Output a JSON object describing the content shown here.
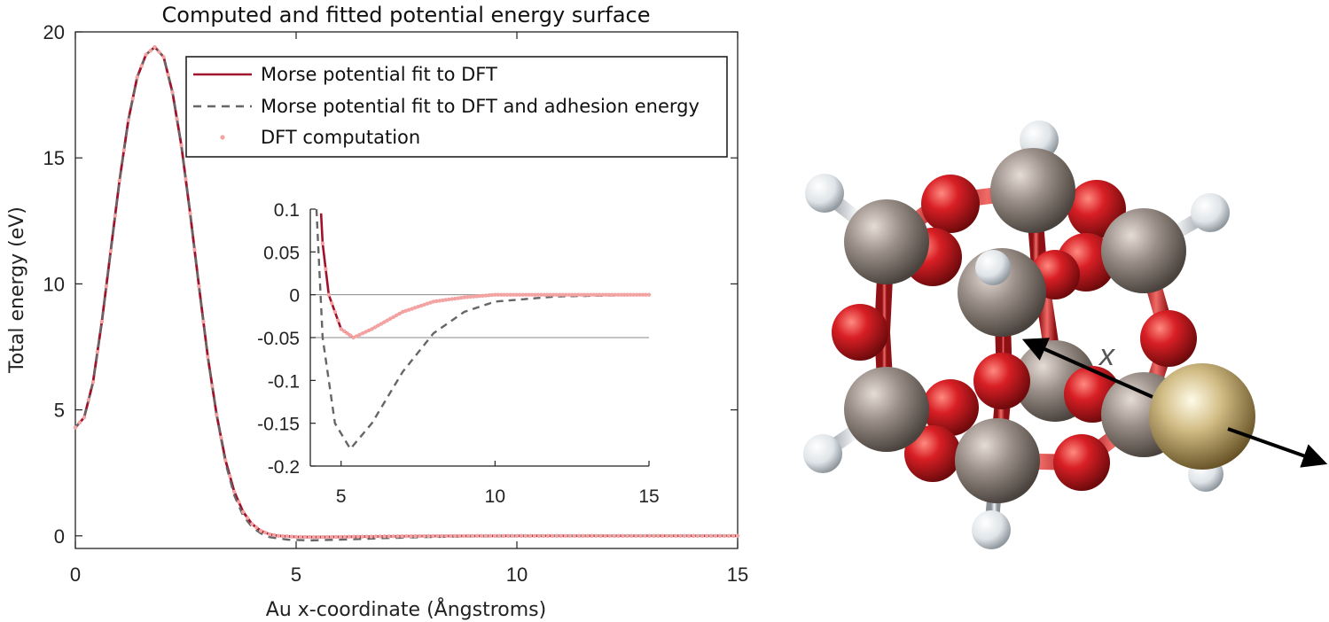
{
  "chart_data": {
    "type": "line",
    "title": "Computed and fitted potential energy surface",
    "xlabel": "Au x-coordinate (Ångstroms)",
    "ylabel": "Total energy (eV)",
    "xlim": [
      0,
      15
    ],
    "ylim": [
      -0.5,
      20
    ],
    "xticks": [
      0,
      5,
      10,
      15
    ],
    "yticks": [
      0,
      5,
      10,
      15,
      20
    ],
    "legend_position": "top-right",
    "series": [
      {
        "name": "Morse potential fit to DFT",
        "style": "solid",
        "color": "#a0122b",
        "points": [
          [
            0,
            4.3
          ],
          [
            0.2,
            4.7
          ],
          [
            0.4,
            6.1
          ],
          [
            0.6,
            8.5
          ],
          [
            0.8,
            11.3
          ],
          [
            1.0,
            14.1
          ],
          [
            1.2,
            16.5
          ],
          [
            1.4,
            18.2
          ],
          [
            1.6,
            19.1
          ],
          [
            1.8,
            19.4
          ],
          [
            2.0,
            19.0
          ],
          [
            2.2,
            17.6
          ],
          [
            2.4,
            15.5
          ],
          [
            2.6,
            12.8
          ],
          [
            2.8,
            9.9
          ],
          [
            3.0,
            7.1
          ],
          [
            3.2,
            4.8
          ],
          [
            3.4,
            3.0
          ],
          [
            3.6,
            1.75
          ],
          [
            3.8,
            0.95
          ],
          [
            4.0,
            0.47
          ],
          [
            4.2,
            0.2
          ],
          [
            4.4,
            0.06
          ],
          [
            4.6,
            0.0
          ],
          [
            5.0,
            -0.04
          ],
          [
            5.4,
            -0.05
          ],
          [
            6.0,
            -0.04
          ],
          [
            7.0,
            -0.02
          ],
          [
            8.0,
            -0.008
          ],
          [
            9.0,
            -0.003
          ],
          [
            10,
            0
          ],
          [
            15,
            0
          ]
        ]
      },
      {
        "name": "Morse potential fit to DFT and adhesion energy",
        "style": "dashed",
        "color": "#666666",
        "points": [
          [
            0,
            4.3
          ],
          [
            0.2,
            4.7
          ],
          [
            0.4,
            6.1
          ],
          [
            0.6,
            8.5
          ],
          [
            0.8,
            11.3
          ],
          [
            1.0,
            14.1
          ],
          [
            1.2,
            16.5
          ],
          [
            1.4,
            18.2
          ],
          [
            1.6,
            19.1
          ],
          [
            1.8,
            19.4
          ],
          [
            2.0,
            19.0
          ],
          [
            2.2,
            17.6
          ],
          [
            2.4,
            15.5
          ],
          [
            2.6,
            12.8
          ],
          [
            2.8,
            9.9
          ],
          [
            3.0,
            7.1
          ],
          [
            3.2,
            4.8
          ],
          [
            3.4,
            2.9
          ],
          [
            3.6,
            1.6
          ],
          [
            3.8,
            0.8
          ],
          [
            4.0,
            0.35
          ],
          [
            4.2,
            0.1
          ],
          [
            4.4,
            -0.05
          ],
          [
            4.8,
            -0.15
          ],
          [
            5.3,
            -0.18
          ],
          [
            6.0,
            -0.15
          ],
          [
            7.0,
            -0.09
          ],
          [
            8.0,
            -0.045
          ],
          [
            9.0,
            -0.02
          ],
          [
            10,
            -0.008
          ],
          [
            12,
            -0.002
          ],
          [
            15,
            0
          ]
        ]
      },
      {
        "name": "DFT computation",
        "style": "points",
        "color": "#f4a3a3",
        "x_range": [
          0,
          15
        ],
        "note_values": "sampled along Morse fit to DFT"
      }
    ],
    "inset": {
      "xlim": [
        4,
        15
      ],
      "ylim": [
        -0.2,
        0.1
      ],
      "xticks": [
        5,
        10,
        15
      ],
      "yticks": [
        0.1,
        0.05,
        0,
        -0.05,
        -0.1,
        -0.15,
        -0.2
      ],
      "ytick_labels": [
        "0.1",
        "0.05",
        "0",
        "-0.05",
        "-0.1",
        "-0.15",
        "-0.2"
      ],
      "reference_lines": [
        0,
        -0.05
      ]
    }
  },
  "figure": {
    "molecule_label": "x",
    "colors": {
      "carbon": "#8a7f78",
      "oxygen": "#c8171d",
      "hydrogen": "#e8ecef",
      "gold": "#b59a5a"
    }
  }
}
